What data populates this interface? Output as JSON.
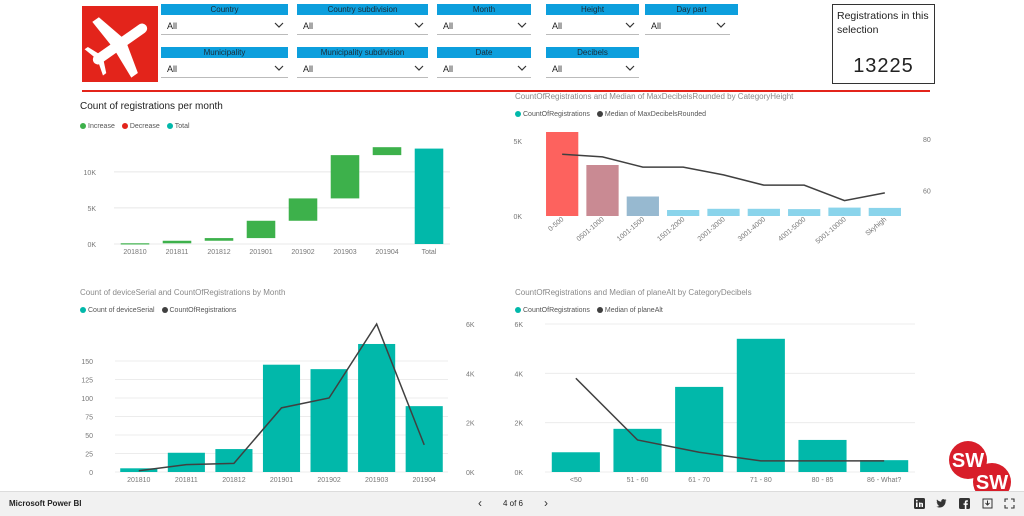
{
  "slicers": [
    {
      "label": "Country",
      "value": "All"
    },
    {
      "label": "Country subdivision",
      "value": "All"
    },
    {
      "label": "Month",
      "value": "All"
    },
    {
      "label": "Height",
      "value": "All"
    },
    {
      "label": "Day part",
      "value": "All"
    },
    {
      "label": "Municipality",
      "value": "All"
    },
    {
      "label": "Municipality subdivision",
      "value": "All"
    },
    {
      "label": "Date",
      "value": "All"
    },
    {
      "label": "Decibels",
      "value": "All"
    }
  ],
  "registrations": {
    "title": "Registrations in this selection",
    "value": "13225"
  },
  "colors": {
    "accent": "#e3241b",
    "slicer_header": "#0d9fdd",
    "teal": "#01b8aa",
    "increase": "#3db14b",
    "decrease": "#e3241b",
    "line": "#404040"
  },
  "chart_data": [
    {
      "type": "bar",
      "subtype": "waterfall",
      "title": "Count of registrations per month",
      "legend": [
        "Increase",
        "Decrease",
        "Total"
      ],
      "legend_colors": [
        "#3db14b",
        "#e3241b",
        "#01b8aa"
      ],
      "categories": [
        "201810",
        "201811",
        "201812",
        "201901",
        "201902",
        "201903",
        "201904",
        "Total"
      ],
      "values": [
        100,
        350,
        370,
        2400,
        3100,
        6000,
        1100,
        13225
      ],
      "ylim": [
        0,
        14000
      ],
      "yticks": [
        0,
        5000,
        10000
      ],
      "ytick_labels": [
        "0K",
        "5K",
        "10K"
      ]
    },
    {
      "type": "bar",
      "title": "CountOfRegistrations and Median of MaxDecibelsRounded by CategoryHeight",
      "legend": [
        "CountOfRegistrations",
        "Median of MaxDecibelsRounded"
      ],
      "categories": [
        "0-500",
        "0501-1000",
        "1001-1500",
        "1501-2000",
        "2001-3000",
        "3001-4000",
        "4001-5000",
        "5001-10000",
        "Skyhigh"
      ],
      "series": [
        {
          "name": "CountOfRegistrations",
          "values": [
            5600,
            3400,
            1300,
            400,
            480,
            480,
            460,
            560,
            540
          ],
          "colors": [
            "#fd625e",
            "#c98a93",
            "#97b9d0",
            "#8ad4eb",
            "#8ad4eb",
            "#8ad4eb",
            "#8ad4eb",
            "#8ad4eb",
            "#8ad4eb"
          ]
        },
        {
          "name": "Median of MaxDecibelsRounded",
          "values": [
            74,
            73,
            69,
            69,
            66,
            62,
            62,
            56,
            59
          ]
        }
      ],
      "ylim": [
        0,
        6000
      ],
      "yticks": [
        0,
        5000
      ],
      "ytick_labels": [
        "0K",
        "5K"
      ],
      "y2lim": [
        50,
        85
      ],
      "y2ticks": [
        60,
        80
      ],
      "y2tick_labels": [
        "60",
        "80"
      ]
    },
    {
      "type": "bar",
      "title": "Count of deviceSerial and CountOfRegistrations by Month",
      "legend": [
        "Count of deviceSerial",
        "CountOfRegistrations"
      ],
      "categories": [
        "201810",
        "201811",
        "201812",
        "201901",
        "201902",
        "201903",
        "201904"
      ],
      "series": [
        {
          "name": "Count of deviceSerial",
          "values": [
            5,
            26,
            31,
            145,
            139,
            173,
            89
          ]
        },
        {
          "name": "CountOfRegistrations",
          "values": [
            50,
            300,
            350,
            2600,
            3000,
            6000,
            1100
          ]
        }
      ],
      "ylim": [
        0,
        200
      ],
      "yticks": [
        0,
        25,
        50,
        75,
        100,
        125,
        150
      ],
      "ytick_labels": [
        "0",
        "25",
        "50",
        "75",
        "100",
        "125",
        "150"
      ],
      "y2lim": [
        0,
        6000
      ],
      "y2ticks": [
        0,
        2000,
        4000,
        6000
      ],
      "y2tick_labels": [
        "0K",
        "2K",
        "4K",
        "6K"
      ]
    },
    {
      "type": "bar",
      "title": "CountOfRegistrations and Median of planeAlt by CategoryDecibels",
      "legend": [
        "CountOfRegistrations",
        "Median of planeAlt"
      ],
      "categories": [
        "<50",
        "51 - 60",
        "61 - 70",
        "71 - 80",
        "80 - 85",
        "86 - What?"
      ],
      "series": [
        {
          "name": "CountOfRegistrations",
          "values": [
            800,
            1750,
            3450,
            5400,
            1300,
            480
          ]
        },
        {
          "name": "Median of planeAlt",
          "values": [
            3800,
            1300,
            800,
            450,
            450,
            450
          ]
        }
      ],
      "ylim": [
        0,
        6000
      ],
      "yticks": [
        0,
        2000,
        4000,
        6000
      ],
      "ytick_labels": [
        "0K",
        "2K",
        "4K",
        "6K"
      ]
    }
  ],
  "footer": {
    "brand": "Microsoft Power BI",
    "page_indicator": "4 of 6",
    "prev_icon": "chevron-left-icon",
    "next_icon": "chevron-right-icon",
    "share_icons": [
      "linkedin-icon",
      "twitter-icon",
      "facebook-icon",
      "download-icon",
      "fullscreen-icon"
    ]
  },
  "badge_text": [
    "SW",
    "SW"
  ]
}
